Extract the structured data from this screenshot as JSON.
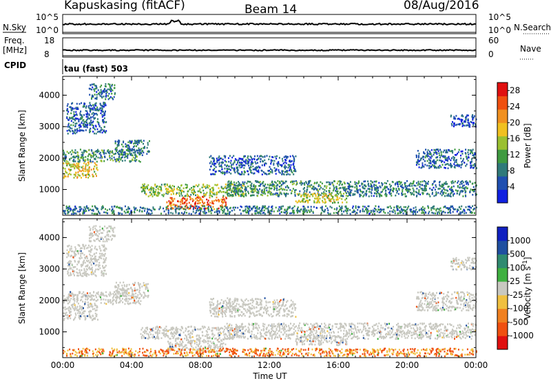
{
  "header": {
    "station": "Kapuskasing (fitACF)",
    "beam": "Beam 14",
    "date": "08/Aug/2016"
  },
  "strip_labels": {
    "nsky": "N.Sky",
    "nsky_ticks": [
      "10^5",
      "10^0"
    ],
    "nsearch": "N.Search",
    "nsearch_ticks": [
      "10^5",
      "10^0"
    ],
    "freq": "Freq.",
    "freq_unit": "[MHz]",
    "freq_ticks": [
      "18",
      "8"
    ],
    "nave": "Nave",
    "nave_ticks": [
      "60",
      "0"
    ],
    "cpid": "CPID",
    "cpid_value": "tau (fast) 503"
  },
  "colors": {
    "power_scale": [
      "#1020e0",
      "#1f4fb0",
      "#2f7a7a",
      "#3f9a40",
      "#9ac030",
      "#f0c020",
      "#f09020",
      "#f05010",
      "#e01010"
    ],
    "velocity_scale": [
      "#e01010",
      "#f05010",
      "#f08020",
      "#f0c040",
      "#c8c8c0",
      "#3fb040",
      "#2f8a70",
      "#1f4fa0",
      "#1020c0"
    ]
  },
  "chart_data": [
    {
      "type": "heatmap",
      "title": "",
      "xlabel": "",
      "ylabel": "Slant Range [km]",
      "x_ticks": [
        "00:00",
        "04:00",
        "08:00",
        "12:00",
        "16:00",
        "20:00",
        "00:00"
      ],
      "xlim_hours": [
        0,
        24
      ],
      "y_ticks": [
        1000,
        2000,
        3000,
        4000
      ],
      "ylim_km": [
        180,
        4600
      ],
      "colorbar": {
        "label": "Power [dB]",
        "ticks": [
          4,
          8,
          12,
          16,
          20,
          24,
          28
        ],
        "range": [
          0,
          30
        ]
      },
      "scatter_regions": [
        {
          "t0": 0.0,
          "t1": 2.0,
          "r0": 1400,
          "r1": 1900,
          "value": 18
        },
        {
          "t0": 0.0,
          "t1": 4.5,
          "r0": 1900,
          "r1": 2300,
          "value": 10
        },
        {
          "t0": 3.0,
          "t1": 5.0,
          "r0": 2100,
          "r1": 2600,
          "value": 8
        },
        {
          "t0": 0.2,
          "t1": 2.5,
          "r0": 2800,
          "r1": 3800,
          "value": 6
        },
        {
          "t0": 1.5,
          "t1": 3.0,
          "r0": 3900,
          "r1": 4400,
          "value": 8
        },
        {
          "t0": 4.5,
          "t1": 10.5,
          "r0": 800,
          "r1": 1200,
          "value": 14
        },
        {
          "t0": 6.0,
          "t1": 9.5,
          "r0": 400,
          "r1": 800,
          "value": 24
        },
        {
          "t0": 9.5,
          "t1": 16.5,
          "r0": 800,
          "r1": 1300,
          "value": 10
        },
        {
          "t0": 13.5,
          "t1": 16.5,
          "r0": 600,
          "r1": 900,
          "value": 16
        },
        {
          "t0": 8.5,
          "t1": 13.5,
          "r0": 1500,
          "r1": 2100,
          "value": 6
        },
        {
          "t0": 16.5,
          "t1": 24.0,
          "r0": 800,
          "r1": 1300,
          "value": 8
        },
        {
          "t0": 20.5,
          "t1": 24.0,
          "r0": 1700,
          "r1": 2300,
          "value": 6
        },
        {
          "t0": 22.5,
          "t1": 24.0,
          "r0": 3000,
          "r1": 3400,
          "value": 5
        },
        {
          "t0": 0.0,
          "t1": 24.0,
          "r0": 250,
          "r1": 500,
          "value": 8
        }
      ]
    },
    {
      "type": "heatmap",
      "title": "",
      "xlabel": "Time UT",
      "ylabel": "Slant Range [km]",
      "x_ticks": [
        "00:00",
        "04:00",
        "08:00",
        "12:00",
        "16:00",
        "20:00",
        "00:00"
      ],
      "xlim_hours": [
        0,
        24
      ],
      "y_ticks": [
        1000,
        2000,
        3000,
        4000
      ],
      "ylim_km": [
        180,
        4600
      ],
      "colorbar": {
        "label": "Velocity [m s^-1]",
        "ticks": [
          1000,
          500,
          100,
          25,
          -25,
          -100,
          -500,
          -1000
        ]
      },
      "scatter_regions": [
        {
          "t0": 0.0,
          "t1": 2.0,
          "r0": 1400,
          "r1": 1900,
          "value": 0
        },
        {
          "t0": 0.0,
          "t1": 4.5,
          "r0": 1900,
          "r1": 2300,
          "value": 0
        },
        {
          "t0": 3.0,
          "t1": 5.0,
          "r0": 2100,
          "r1": 2600,
          "value": 0
        },
        {
          "t0": 0.2,
          "t1": 2.5,
          "r0": 2800,
          "r1": 3800,
          "value": 0
        },
        {
          "t0": 1.5,
          "t1": 3.0,
          "r0": 3900,
          "r1": 4400,
          "value": 0
        },
        {
          "t0": 4.5,
          "t1": 10.5,
          "r0": 800,
          "r1": 1200,
          "value": 0
        },
        {
          "t0": 6.0,
          "t1": 9.5,
          "r0": 400,
          "r1": 800,
          "value": 0
        },
        {
          "t0": 9.5,
          "t1": 16.5,
          "r0": 800,
          "r1": 1300,
          "value": 0
        },
        {
          "t0": 13.5,
          "t1": 16.5,
          "r0": 600,
          "r1": 900,
          "value": 0
        },
        {
          "t0": 8.5,
          "t1": 13.5,
          "r0": 1500,
          "r1": 2100,
          "value": 0
        },
        {
          "t0": 16.5,
          "t1": 24.0,
          "r0": 800,
          "r1": 1300,
          "value": 0
        },
        {
          "t0": 20.5,
          "t1": 24.0,
          "r0": 1700,
          "r1": 2300,
          "value": 0
        },
        {
          "t0": 22.5,
          "t1": 24.0,
          "r0": 3000,
          "r1": 3400,
          "value": 0
        },
        {
          "t0": 0.0,
          "t1": 24.0,
          "r0": 250,
          "r1": 500,
          "value": -100
        }
      ]
    }
  ]
}
